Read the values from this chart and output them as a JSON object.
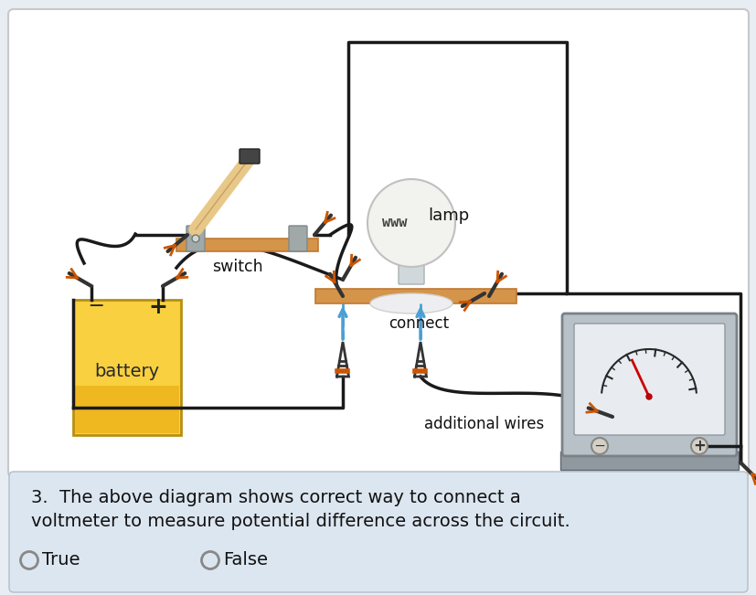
{
  "bg_color": "#e8edf4",
  "diagram_bg": "#ffffff",
  "question_bg": "#dce6f0",
  "question_line1": "3.  The above diagram shows correct way to connect a",
  "question_line2": "voltmeter to measure potential difference across the circuit.",
  "true_label": "True",
  "false_label": "False",
  "switch_label": "switch",
  "lamp_label": "lamp",
  "connect_label": "connect",
  "battery_label": "battery",
  "additional_wires_label": "additional wires",
  "wire_color": "#1a1a1a",
  "wire_color2": "#2a2a2a",
  "blue_color": "#4a9fd4",
  "board_color": "#d4944a",
  "board_color2": "#c07830",
  "battery_fill_top": "#f8d040",
  "battery_fill_bottom": "#f0b820",
  "battery_dark": "#c89010",
  "voltmeter_case": "#b8c0c8",
  "voltmeter_case2": "#c8d0d8",
  "voltmeter_face": "#d8dde4",
  "voltmeter_screen": "#e8ecf0",
  "text_color": "#111111",
  "radio_color": "#666666",
  "clip_dark": "#333333",
  "clip_orange": "#cc5500",
  "switch_wood": "#e8c888",
  "switch_metal": "#a0a8a8",
  "lamp_glass": "#f2f2ee",
  "lamp_base_color": "#c0c8cc",
  "lamp_neck": "#d0d8dc"
}
